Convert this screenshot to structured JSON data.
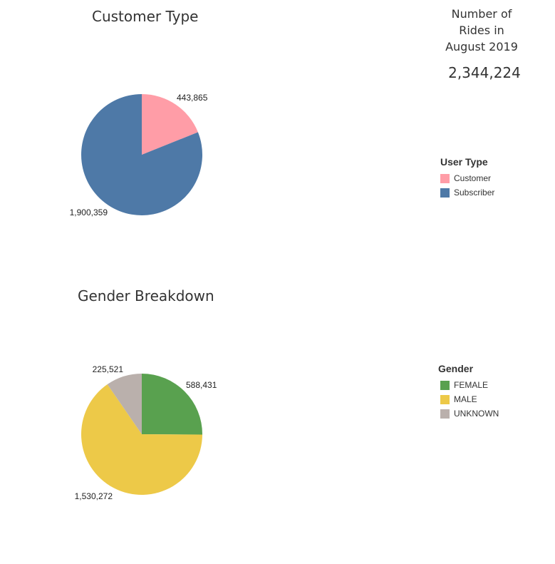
{
  "kpi": {
    "label_lines": [
      "Number of",
      "Rides in",
      "August 2019"
    ],
    "value": "2,344,224"
  },
  "chart_data": [
    {
      "type": "pie",
      "title": "Customer Type",
      "legend_title": "User Type",
      "legend_position": "right",
      "categories": [
        "Customer",
        "Subscriber"
      ],
      "values": [
        443865,
        1900359
      ],
      "value_labels": [
        "443,865",
        "1,900,359"
      ],
      "colors": [
        "#ff9da7",
        "#4e79a7"
      ]
    },
    {
      "type": "pie",
      "title": "Gender Breakdown",
      "legend_title": "Gender",
      "legend_position": "right",
      "categories": [
        "FEMALE",
        "MALE",
        "UNKNOWN"
      ],
      "values": [
        588431,
        1530272,
        225521
      ],
      "value_labels": [
        "588,431",
        "1,530,272",
        "225,521"
      ],
      "colors": [
        "#59a14f",
        "#edc948",
        "#bab0ac"
      ]
    }
  ]
}
